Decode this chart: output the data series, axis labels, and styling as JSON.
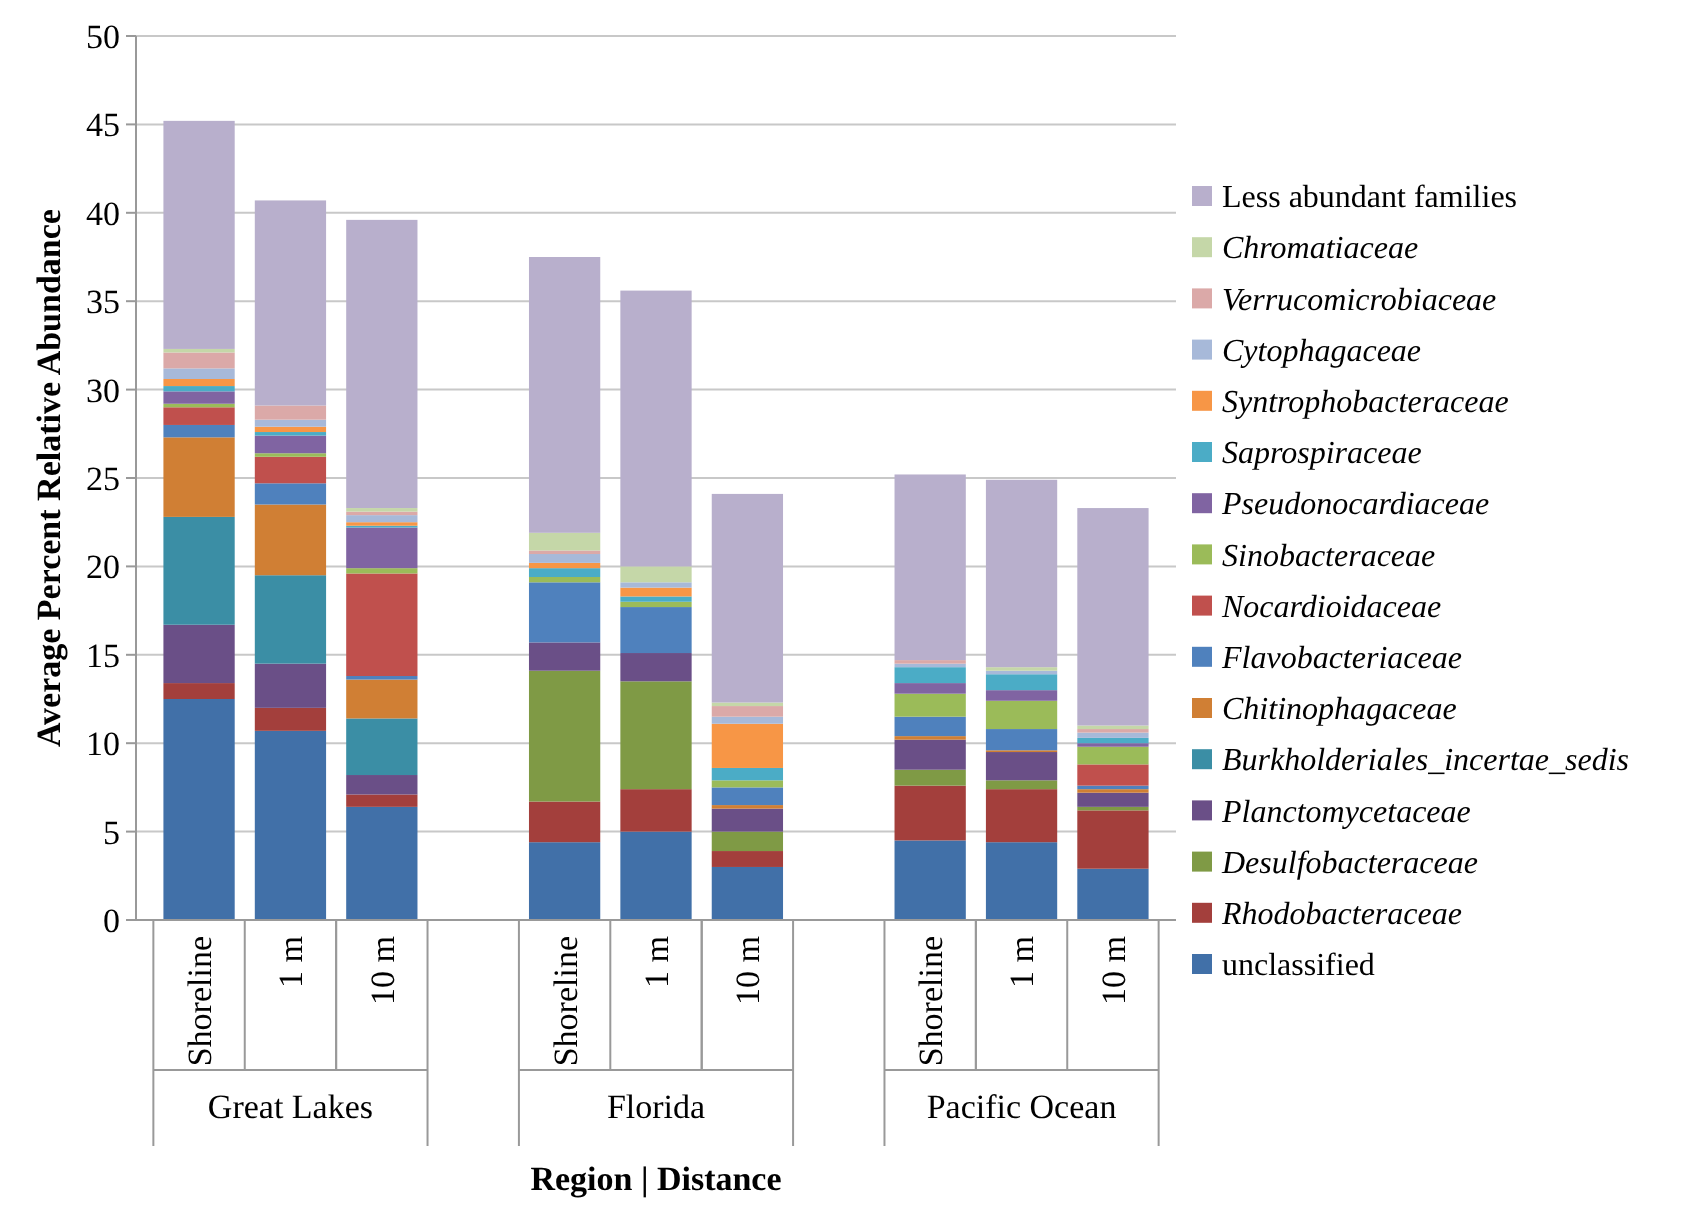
{
  "chart_data": {
    "type": "bar",
    "stacked": true,
    "xlabel": "Region | Distance",
    "ylabel": "Average Percent Relative Abundance",
    "categories": [
      "Shoreline",
      "1 m",
      "10 m",
      null,
      "Shoreline",
      "1 m",
      "10 m",
      null,
      "Shoreline",
      "1 m",
      "10 m"
    ],
    "annotations": [
      "Great Lakes",
      "Florida",
      "Pacific Ocean"
    ],
    "ylim": [
      0,
      50
    ],
    "yticks": [
      0,
      5,
      10,
      15,
      20,
      25,
      30,
      35,
      40,
      45,
      50
    ],
    "grid": "y",
    "legend": "right",
    "series": [
      {
        "name": "unclassified",
        "color": "#4170a8",
        "values": [
          12.5,
          10.7,
          6.4,
          null,
          4.4,
          5.0,
          3.0,
          null,
          4.5,
          4.4,
          2.9
        ]
      },
      {
        "name": "Rhodobacteraceae",
        "color": "#a33f3c",
        "values": [
          0.9,
          1.3,
          0.7,
          null,
          2.3,
          2.4,
          0.9,
          null,
          3.1,
          3.0,
          3.3
        ]
      },
      {
        "name": "Desulfobacteraceae",
        "color": "#7f9a45",
        "values": [
          0,
          0,
          0,
          null,
          7.4,
          6.1,
          1.1,
          null,
          0.9,
          0.5,
          0.2
        ]
      },
      {
        "name": "Planctomycetaceae",
        "color": "#6a4f87",
        "values": [
          3.3,
          2.5,
          1.1,
          null,
          1.6,
          1.6,
          1.3,
          null,
          1.7,
          1.6,
          0.8
        ]
      },
      {
        "name": "Burkholderiales_incertae_sedis",
        "color": "#3b8ea5",
        "values": [
          6.1,
          5.0,
          3.2,
          null,
          0,
          0,
          0,
          null,
          0,
          0,
          0
        ]
      },
      {
        "name": "Chitinophagaceae",
        "color": "#d07f34",
        "values": [
          4.5,
          4.0,
          2.2,
          null,
          0,
          0,
          0.2,
          null,
          0.2,
          0.1,
          0.2
        ]
      },
      {
        "name": "Flavobacteriaceae",
        "color": "#4f81bd",
        "values": [
          0.7,
          1.2,
          0.2,
          null,
          3.4,
          2.6,
          1.0,
          null,
          1.1,
          1.2,
          0.2
        ]
      },
      {
        "name": "Nocardioidaceae",
        "color": "#c0504d",
        "values": [
          1.0,
          1.5,
          5.8,
          null,
          0,
          0,
          0,
          null,
          0,
          0,
          1.2
        ]
      },
      {
        "name": "Sinobacteraceae",
        "color": "#9bbb59",
        "values": [
          0.2,
          0.2,
          0.3,
          null,
          0.3,
          0.3,
          0.4,
          null,
          1.3,
          1.6,
          1.0
        ]
      },
      {
        "name": "Pseudonocardiaceae",
        "color": "#8064a2",
        "values": [
          0.7,
          1.0,
          2.3,
          null,
          0,
          0,
          0,
          null,
          0.6,
          0.6,
          0.2
        ]
      },
      {
        "name": "Saprospiraceae",
        "color": "#4bacc6",
        "values": [
          0.3,
          0.2,
          0.1,
          null,
          0.5,
          0.3,
          0.7,
          null,
          0.9,
          0.9,
          0.3
        ]
      },
      {
        "name": "Syntrophobacteraceae",
        "color": "#f79646",
        "values": [
          0.4,
          0.3,
          0.2,
          null,
          0.3,
          0.5,
          2.5,
          null,
          0,
          0,
          0
        ]
      },
      {
        "name": "Cytophagaceae",
        "color": "#a7b9d9",
        "values": [
          0.6,
          0.4,
          0.4,
          null,
          0.5,
          0.3,
          0.4,
          null,
          0.2,
          0.2,
          0.3
        ]
      },
      {
        "name": "Verrucomicrobiaceae",
        "color": "#dba9a8",
        "values": [
          0.9,
          0.8,
          0.2,
          null,
          0.2,
          null,
          0.6,
          null,
          0.2,
          null,
          0.2
        ]
      },
      {
        "name": "Chromatiaceae",
        "color": "#c5d7a8",
        "values": [
          0.2,
          null,
          0.2,
          null,
          1.0,
          0.9,
          0.2,
          null,
          null,
          0.2,
          0.2
        ]
      },
      {
        "name": "Less abundant families",
        "color": "#b8afcc",
        "values": [
          12.9,
          11.6,
          16.3,
          null,
          15.6,
          15.6,
          11.8,
          null,
          10.5,
          10.6,
          12.3
        ]
      }
    ]
  }
}
